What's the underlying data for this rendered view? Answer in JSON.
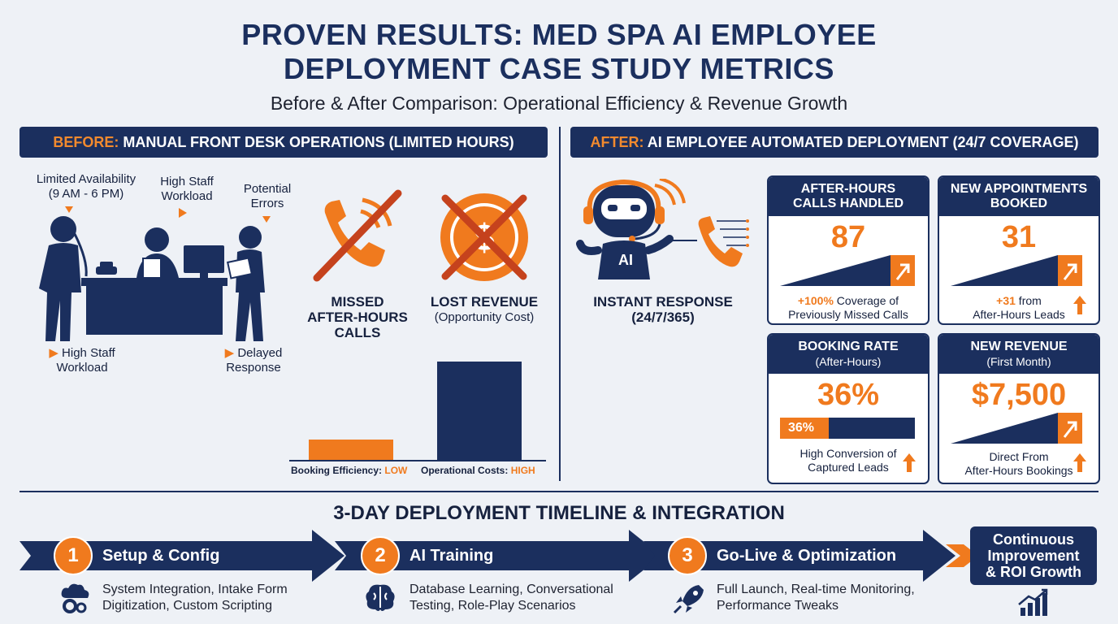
{
  "title": {
    "line1": "PROVEN RESULTS:  MED SPA AI EMPLOYEE",
    "line2": "DEPLOYMENT CASE STUDY METRICS",
    "subtitle": "Before & After Comparison: Operational Efficiency & Revenue Growth"
  },
  "before": {
    "banner_highlight": "BEFORE:",
    "banner_text": " MANUAL FRONT DESK OPERATIONS (LIMITED HOURS)",
    "limited_availability": "Limited Availability",
    "hours": "(9 AM - 6 PM)",
    "high_staff_workload_top_1": "High Staff",
    "high_staff_workload_top_2": "Workload",
    "potential_errors_1": "Potential",
    "potential_errors_2": "Errors",
    "high_staff_workload_bottom_1": "High Staff",
    "high_staff_workload_bottom_2": "Workload",
    "delayed_response_1": "Delayed",
    "delayed_response_2": "Response",
    "missed_calls_1": "MISSED",
    "missed_calls_2": "AFTER-HOURS",
    "missed_calls_3": "CALLS",
    "lost_revenue": "LOST REVENUE",
    "lost_revenue_sub": "(Opportunity Cost)",
    "booking_efficiency_label": "Booking Efficiency: ",
    "booking_efficiency_value": "LOW",
    "operational_costs_label": "Operational Costs: ",
    "operational_costs_value": "HIGH"
  },
  "after": {
    "banner_highlight": "AFTER:",
    "banner_text": " AI EMPLOYEE AUTOMATED DEPLOYMENT (24/7 COVERAGE)",
    "ai_badge": "AI",
    "instant_response_1": "INSTANT RESPONSE",
    "instant_response_2": "(24/7/365)",
    "cards": [
      {
        "head1": "AFTER-HOURS",
        "head2": "CALLS HANDLED",
        "value": "87",
        "foot_hl": "+100%",
        "foot1": " Coverage of",
        "foot2": "Previously Missed Calls"
      },
      {
        "head1": "NEW APPOINTMENTS",
        "head2": "BOOKED",
        "value": "31",
        "foot_hl": "+31",
        "foot1": " from",
        "foot2": "After-Hours Leads"
      },
      {
        "head1": "BOOKING RATE",
        "head2": "(After-Hours)",
        "value": "36%",
        "bar_label": "36%",
        "bar_fraction": 0.36,
        "foot1": "High Conversion of",
        "foot2": "Captured Leads"
      },
      {
        "head1": "NEW REVENUE",
        "head2": "(First Month)",
        "value": "$7,500",
        "foot1": "Direct From",
        "foot2": "After-Hours Bookings"
      }
    ]
  },
  "timeline": {
    "title": "3-DAY DEPLOYMENT TIMELINE & INTEGRATION",
    "steps": [
      {
        "num": "1",
        "label": "Setup & Config",
        "desc1": "System Integration, Intake Form",
        "desc2": "Digitization, Custom Scripting"
      },
      {
        "num": "2",
        "label": "AI Training",
        "desc1": "Database Learning, Conversational",
        "desc2": "Testing, Role-Play Scenarios"
      },
      {
        "num": "3",
        "label": "Go-Live & Optimization",
        "desc1": "Full Launch, Real-time Monitoring,",
        "desc2": "Performance Tweaks"
      }
    ],
    "final_1": "Continuous",
    "final_2": "Improvement",
    "final_3": "& ROI Growth"
  },
  "colors": {
    "navy": "#1b2f5e",
    "orange": "#f07a1e",
    "background": "#eef1f6"
  }
}
